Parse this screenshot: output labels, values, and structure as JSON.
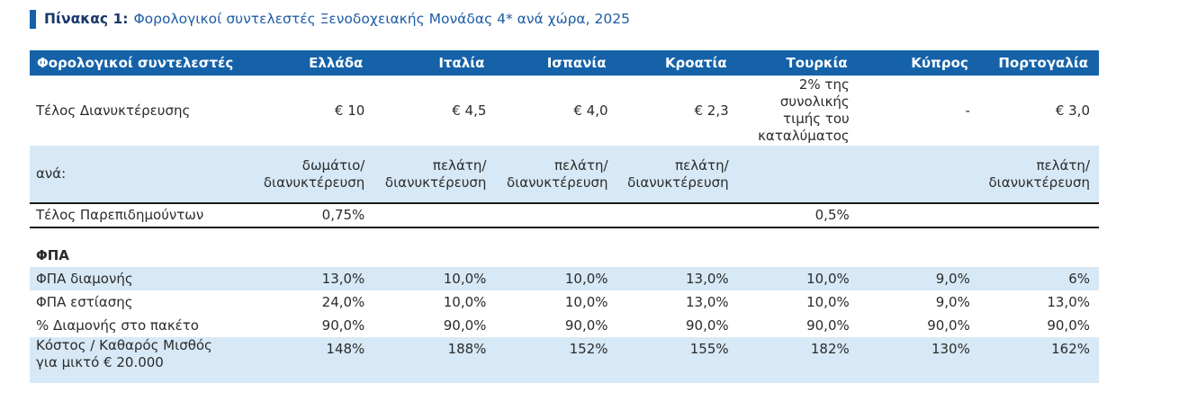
{
  "title": {
    "label": "Πίνακας 1:",
    "text": "Φορολογικοί συντελεστές Ξενοδοχειακής Μονάδας 4* ανά χώρα, 2025"
  },
  "table": {
    "columns": [
      "Φορολογικοί συντελεστές",
      "Ελλάδα",
      "Ιταλία",
      "Ισπανία",
      "Κροατία",
      "Τουρκία",
      "Κύπρος",
      "Πορτογαλία"
    ],
    "rows": [
      {
        "id": "overnight-stay-tax",
        "label": "Τέλος Διανυκτέρευσης",
        "values": [
          "€ 10",
          "€ 4,5",
          "€ 4,0",
          "€ 2,3",
          "2% της\nσυνολικής\nτιμής του\nκαταλύματος",
          "-",
          "€ 3,0"
        ],
        "shaded": false
      },
      {
        "id": "per-unit",
        "label": "ανά:",
        "values": [
          "δωμάτιο/\nδιανυκτέρευση",
          "πελάτη/\nδιανυκτέρευση",
          "πελάτη/\nδιανυκτέρευση",
          "πελάτη/\nδιανυκτέρευση",
          "",
          "",
          "πελάτη/\nδιανυκτέρευση"
        ],
        "shaded": true
      },
      {
        "id": "sojourn-tax",
        "label": "Τέλος Παρεπιδημούντων",
        "values": [
          "0,75%",
          "",
          "",
          "",
          "0,5%",
          "",
          ""
        ],
        "shaded": false,
        "ruled": true
      },
      {
        "id": "vat-section",
        "label": "ΦΠΑ",
        "values": [
          "",
          "",
          "",
          "",
          "",
          "",
          ""
        ],
        "section": true
      },
      {
        "id": "vat-accommodation",
        "label": "ΦΠΑ διαμονής",
        "values": [
          "13,0%",
          "10,0%",
          "10,0%",
          "13,0%",
          "10,0%",
          "9,0%",
          "6%"
        ],
        "shaded": true
      },
      {
        "id": "vat-catering",
        "label": "ΦΠΑ εστίασης",
        "values": [
          "24,0%",
          "10,0%",
          "10,0%",
          "13,0%",
          "10,0%",
          "9,0%",
          "13,0%"
        ],
        "shaded": false
      },
      {
        "id": "stay-share-in-package",
        "label": "% Διαμονής στο πακέτο",
        "values": [
          "90,0%",
          "90,0%",
          "90,0%",
          "90,0%",
          "90,0%",
          "90,0%",
          "90,0%"
        ],
        "shaded": false
      },
      {
        "id": "cost-to-net-salary",
        "label": "Κόστος / Καθαρός Μισθός\nγια μικτό € 20.000",
        "values": [
          "148%",
          "188%",
          "152%",
          "155%",
          "182%",
          "130%",
          "162%"
        ],
        "shaded": true,
        "align_top": true
      }
    ]
  },
  "colors": {
    "header_bg": "#1562a9",
    "band_bg": "#d7e9f6",
    "accent_bar": "#1562a9",
    "caption_label": "#17386b",
    "caption_text": "#1d5ca6",
    "rule": "#1a1a1a",
    "body_text": "#2b2b2b"
  }
}
